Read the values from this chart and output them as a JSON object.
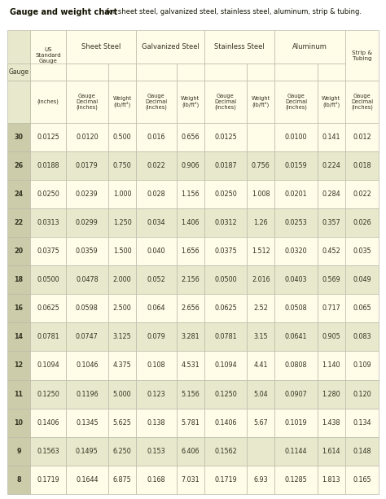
{
  "title_bold": "Gauge and weight chart",
  "title_regular": " for sheet steel, galvanized steel, stainless steel, aluminum, strip & tubing.",
  "data": [
    [
      30,
      "0.0125",
      "0.0120",
      "0.500",
      "0.016",
      "0.656",
      "0.0125",
      "",
      "0.0100",
      "0.141",
      "0.012"
    ],
    [
      26,
      "0.0188",
      "0.0179",
      "0.750",
      "0.022",
      "0.906",
      "0.0187",
      "0.756",
      "0.0159",
      "0.224",
      "0.018"
    ],
    [
      24,
      "0.0250",
      "0.0239",
      "1.000",
      "0.028",
      "1.156",
      "0.0250",
      "1.008",
      "0.0201",
      "0.284",
      "0.022"
    ],
    [
      22,
      "0.0313",
      "0.0299",
      "1.250",
      "0.034",
      "1.406",
      "0.0312",
      "1.26",
      "0.0253",
      "0.357",
      "0.026"
    ],
    [
      20,
      "0.0375",
      "0.0359",
      "1.500",
      "0.040",
      "1.656",
      "0.0375",
      "1.512",
      "0.0320",
      "0.452",
      "0.035"
    ],
    [
      18,
      "0.0500",
      "0.0478",
      "2.000",
      "0.052",
      "2.156",
      "0.0500",
      "2.016",
      "0.0403",
      "0.569",
      "0.049"
    ],
    [
      16,
      "0.0625",
      "0.0598",
      "2.500",
      "0.064",
      "2.656",
      "0.0625",
      "2.52",
      "0.0508",
      "0.717",
      "0.065"
    ],
    [
      14,
      "0.0781",
      "0.0747",
      "3.125",
      "0.079",
      "3.281",
      "0.0781",
      "3.15",
      "0.0641",
      "0.905",
      "0.083"
    ],
    [
      12,
      "0.1094",
      "0.1046",
      "4.375",
      "0.108",
      "4.531",
      "0.1094",
      "4.41",
      "0.0808",
      "1.140",
      "0.109"
    ],
    [
      11,
      "0.1250",
      "0.1196",
      "5.000",
      "0.123",
      "5.156",
      "0.1250",
      "5.04",
      "0.0907",
      "1.280",
      "0.120"
    ],
    [
      10,
      "0.1406",
      "0.1345",
      "5.625",
      "0.138",
      "5.781",
      "0.1406",
      "5.67",
      "0.1019",
      "1.438",
      "0.134"
    ],
    [
      9,
      "0.1563",
      "0.1495",
      "6.250",
      "0.153",
      "6.406",
      "0.1562",
      "",
      "0.1144",
      "1.614",
      "0.148"
    ],
    [
      8,
      "0.1719",
      "0.1644",
      "6.875",
      "0.168",
      "7.031",
      "0.1719",
      "6.93",
      "0.1285",
      "1.813",
      "0.165"
    ]
  ],
  "header_bg": "#fffce8",
  "gauge_header_bg": "#e8e8cc",
  "row_bg_light": "#fffce8",
  "row_bg_dark": "#e8e8cc",
  "gauge_col_bg": "#ccccaa",
  "border_color": "#bbbbaa",
  "text_color": "#333322",
  "title_color": "#111100",
  "bg_color": "#ffffff",
  "col_props": [
    0.048,
    0.072,
    0.087,
    0.057,
    0.082,
    0.057,
    0.087,
    0.057,
    0.087,
    0.057,
    0.069
  ],
  "title_bold_fs": 7.0,
  "title_reg_fs": 6.0,
  "header_fs": 6.0,
  "subheader_fs": 4.8,
  "data_fs": 5.8,
  "gauge_label_fs": 6.0
}
